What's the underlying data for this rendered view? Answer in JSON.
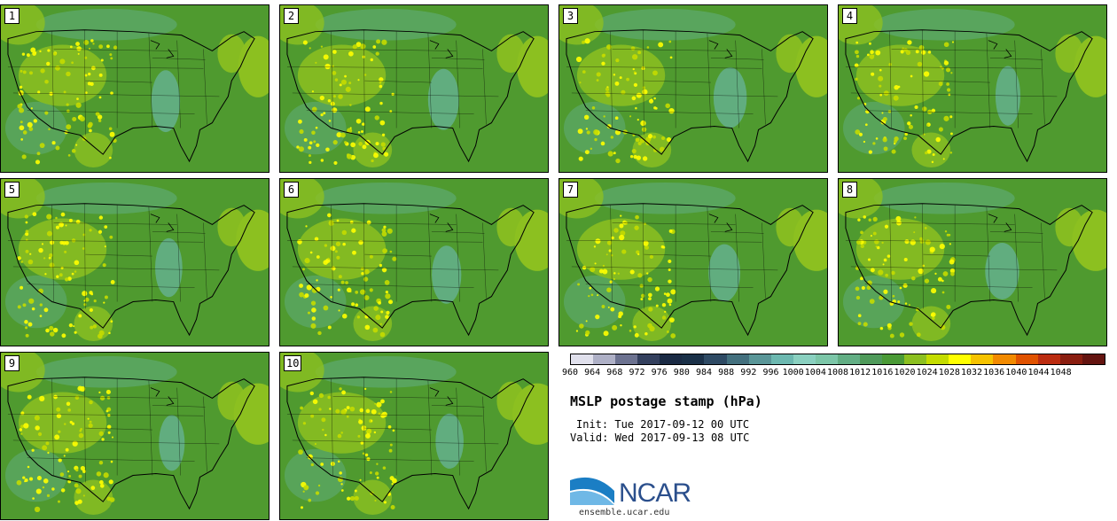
{
  "panels": [
    {
      "label": "1"
    },
    {
      "label": "2"
    },
    {
      "label": "3"
    },
    {
      "label": "4"
    },
    {
      "label": "5"
    },
    {
      "label": "6"
    },
    {
      "label": "7"
    },
    {
      "label": "8"
    },
    {
      "label": "9"
    },
    {
      "label": "10"
    }
  ],
  "colorbar": {
    "ticks": [
      "960",
      "964",
      "968",
      "972",
      "976",
      "980",
      "984",
      "988",
      "992",
      "996",
      "1000",
      "1004",
      "1008",
      "1012",
      "1016",
      "1020",
      "1024",
      "1028",
      "1032",
      "1036",
      "1040",
      "1044",
      "1048"
    ],
    "colors": [
      "#e0e0ec",
      "#aeb0c6",
      "#6c7290",
      "#34405e",
      "#1a2a44",
      "#1a3048",
      "#2e4a64",
      "#43707e",
      "#5a9698",
      "#6cb8b0",
      "#8ad0c0",
      "#7cc6a8",
      "#62ae84",
      "#4f9a5a",
      "#4a9a36",
      "#8cc020",
      "#c4dc00",
      "#ffff00",
      "#f6c300",
      "#f28a00",
      "#e05200",
      "#bb2c10",
      "#8a1e10",
      "#641410"
    ]
  },
  "title": "MSLP postage stamp (hPa)",
  "init": "Init: Tue 2017-09-12 00 UTC",
  "valid": "Valid: Wed 2017-09-13 08 UTC",
  "logo": {
    "name": "NCAR",
    "url": "ensemble.ucar.edu"
  }
}
